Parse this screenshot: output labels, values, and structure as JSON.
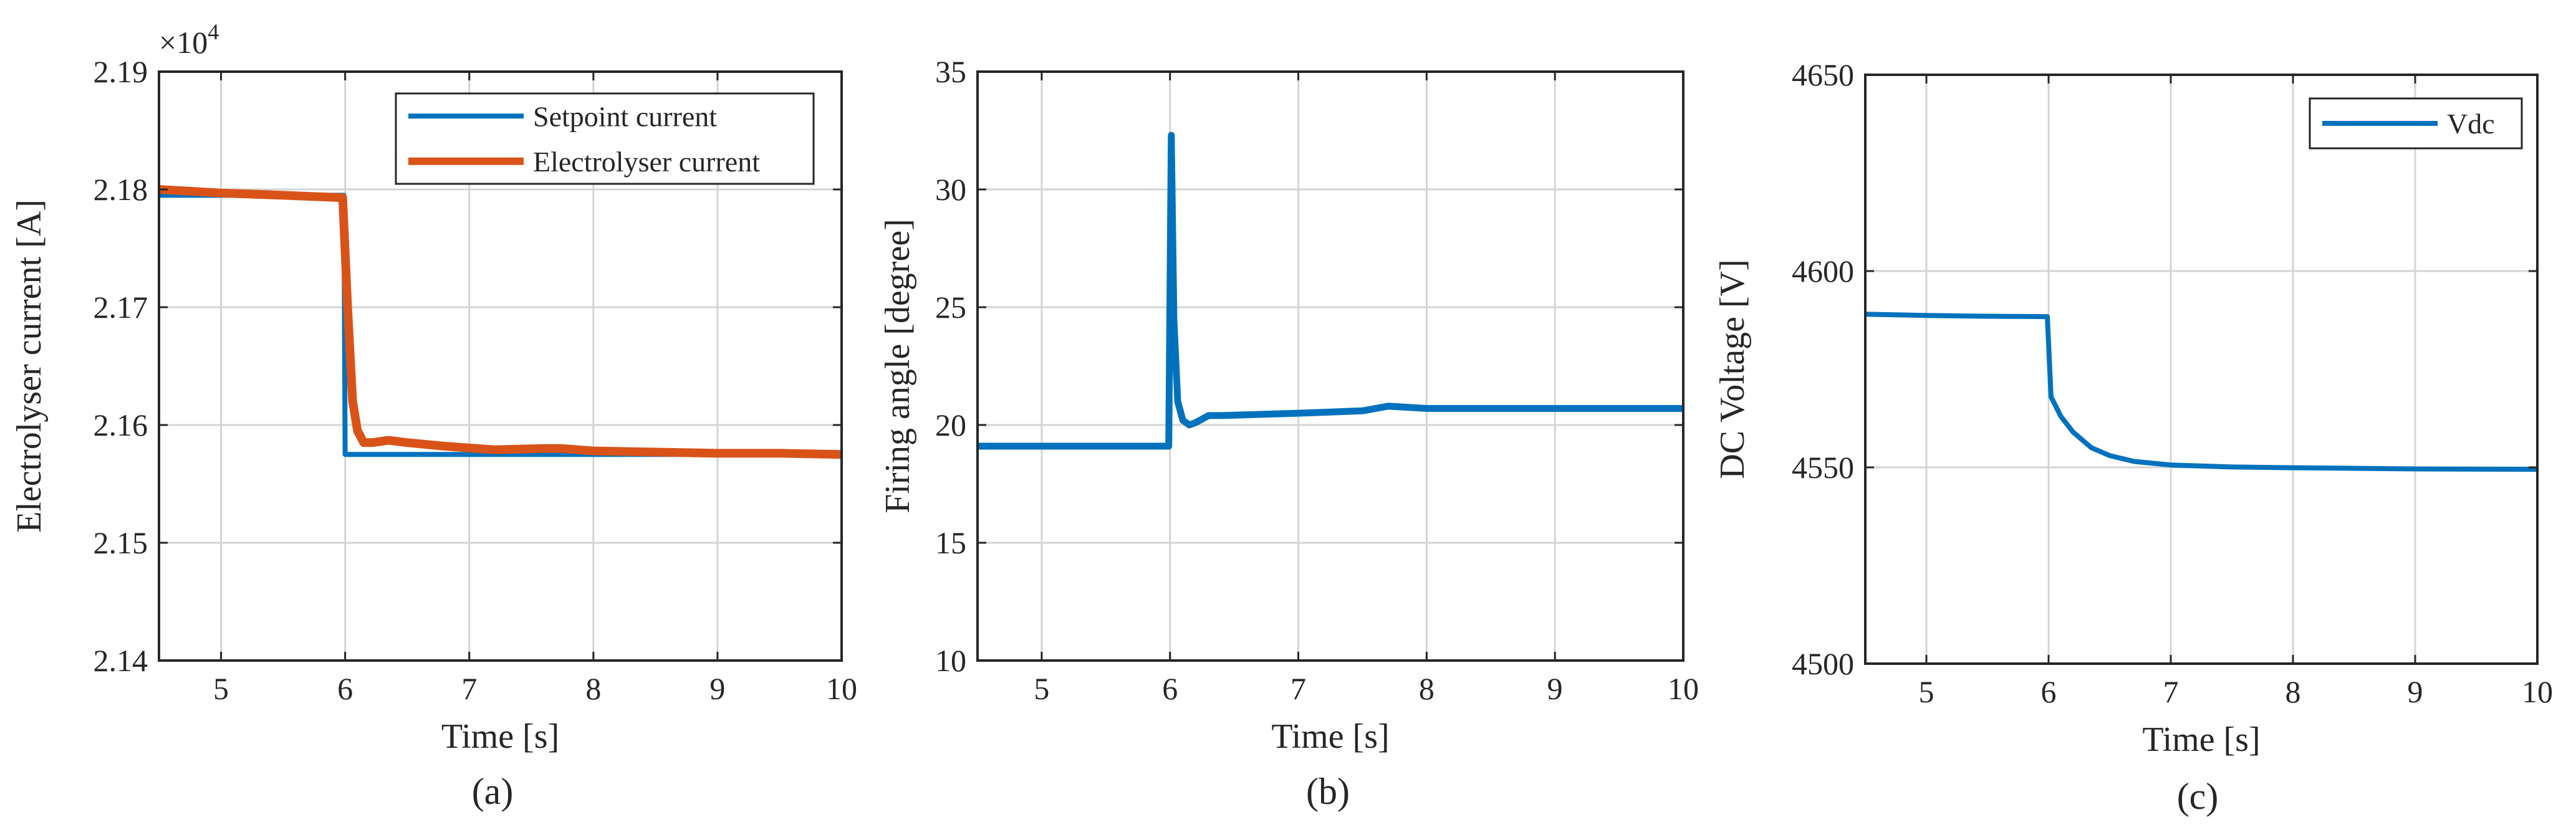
{
  "chart_data": [
    {
      "type": "line",
      "caption": "(a)",
      "xlabel": "Time [s]",
      "ylabel": "Electrolyser current [A]",
      "xlim": [
        4.5,
        10
      ],
      "ylim": [
        2.14,
        2.19
      ],
      "xticks": [
        "5",
        "6",
        "7",
        "8",
        "9",
        "10"
      ],
      "yticks": [
        "2.14",
        "2.15",
        "2.16",
        "2.17",
        "2.18",
        "2.19"
      ],
      "y_multiplier": {
        "base": "×10",
        "exp": "4"
      },
      "grid": true,
      "legend_position": "top-right",
      "series": [
        {
          "name": "Setpoint current",
          "color": "#0072BD",
          "x": [
            4.5,
            5.99,
            6.0,
            10
          ],
          "y": [
            2.1795,
            2.1795,
            2.1575,
            2.1575
          ]
        },
        {
          "name": "Electrolyser current",
          "color": "#D95319",
          "x": [
            4.5,
            5.0,
            5.5,
            5.98,
            6.02,
            6.06,
            6.1,
            6.15,
            6.22,
            6.35,
            6.5,
            6.8,
            7.2,
            7.6,
            7.75,
            8.0,
            8.5,
            9.0,
            9.5,
            10.0
          ],
          "y": [
            2.18,
            2.1797,
            2.1795,
            2.1793,
            2.17,
            2.162,
            2.1595,
            2.1585,
            2.1585,
            2.1587,
            2.1585,
            2.1582,
            2.1579,
            2.158,
            2.158,
            2.1578,
            2.1577,
            2.1576,
            2.1576,
            2.1575
          ]
        }
      ]
    },
    {
      "type": "line",
      "caption": "(b)",
      "xlabel": "Time [s]",
      "ylabel": "Firing angle [degree]",
      "xlim": [
        4.5,
        10
      ],
      "ylim": [
        10,
        35
      ],
      "xticks": [
        "5",
        "6",
        "7",
        "8",
        "9",
        "10"
      ],
      "yticks": [
        "10",
        "15",
        "20",
        "25",
        "30",
        "35"
      ],
      "grid": true,
      "series": [
        {
          "name": "",
          "color": "#0072BD",
          "x": [
            4.5,
            5.99,
            6.01,
            6.03,
            6.06,
            6.1,
            6.15,
            6.2,
            6.3,
            6.4,
            7.0,
            7.5,
            7.7,
            8.0,
            9.0,
            10.0
          ],
          "y": [
            19.1,
            19.1,
            32.3,
            24.5,
            21.0,
            20.2,
            20.0,
            20.1,
            20.4,
            20.4,
            20.5,
            20.6,
            20.8,
            20.7,
            20.7,
            20.7
          ]
        }
      ]
    },
    {
      "type": "line",
      "caption": "(c)",
      "xlabel": "Time [s]",
      "ylabel": "DC Voltage [V]",
      "xlim": [
        4.5,
        10
      ],
      "ylim": [
        4500,
        4650
      ],
      "xticks": [
        "5",
        "6",
        "7",
        "8",
        "9",
        "10"
      ],
      "yticks": [
        "4500",
        "4550",
        "4600",
        "4650"
      ],
      "grid": true,
      "legend_position": "top-right",
      "series": [
        {
          "name": "Vdc",
          "color": "#0072BD",
          "x": [
            4.5,
            5.0,
            5.5,
            5.99,
            6.02,
            6.1,
            6.2,
            6.35,
            6.5,
            6.7,
            7.0,
            7.5,
            8.0,
            9.0,
            10.0
          ],
          "y": [
            4589,
            4588.7,
            4588.5,
            4588.4,
            4568,
            4563,
            4559,
            4555,
            4553,
            4551.5,
            4550.6,
            4550.1,
            4549.9,
            4549.6,
            4549.5
          ]
        }
      ]
    }
  ]
}
